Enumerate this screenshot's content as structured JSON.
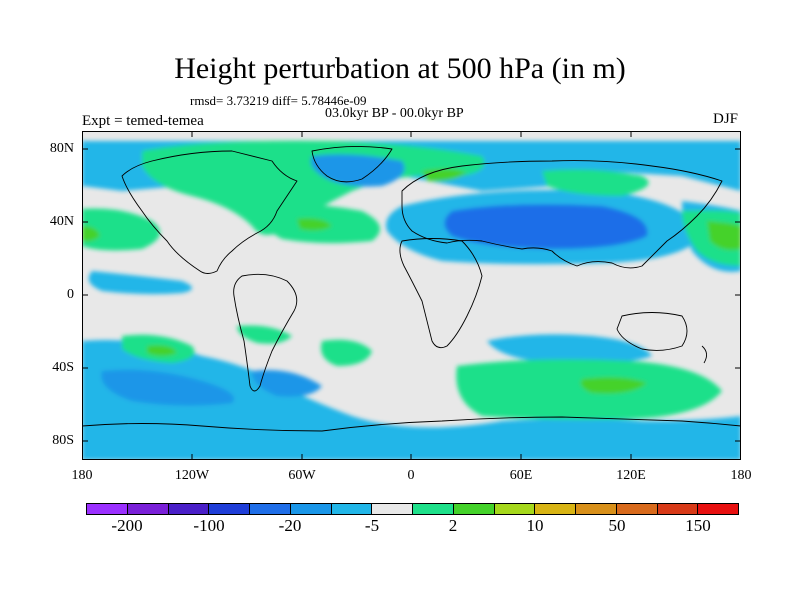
{
  "title": "Height perturbation at 500 hPa (in m)",
  "subtitle": "rmsd= 3.73219 diff= 5.78446e-09",
  "period": "03.0kyr BP - 00.0kyr BP",
  "expt": "Expt = temed-temea",
  "season": "DJF",
  "map": {
    "background_color": "#e8e8e8",
    "latitude_labels": [
      "80N",
      "40N",
      "0",
      "40S",
      "80S"
    ],
    "longitude_labels": [
      "180",
      "120W",
      "60W",
      "0",
      "60E",
      "120E",
      "180"
    ]
  },
  "colorbar": {
    "colors": [
      "#9b30ff",
      "#7a20d8",
      "#4a1fc8",
      "#1f3ed8",
      "#1f6ee8",
      "#1a96e8",
      "#21b6e8",
      "#e8e8e8",
      "#1ee08a",
      "#44d22a",
      "#a6d81c",
      "#d8b414",
      "#d8901a",
      "#d86a1c",
      "#d83a18",
      "#e81010"
    ],
    "tick_labels": [
      "-200",
      "-100",
      "-20",
      "-5",
      "2",
      "10",
      "50",
      "150"
    ]
  }
}
